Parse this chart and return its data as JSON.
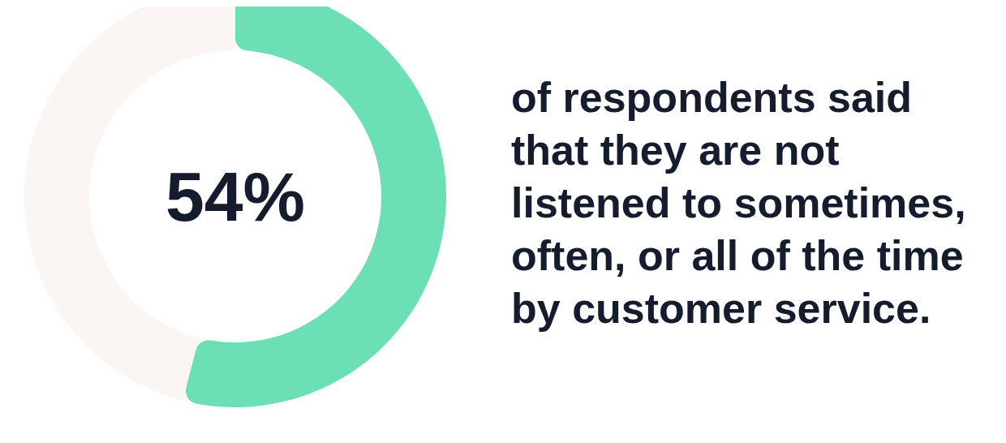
{
  "chart_data": {
    "type": "donut",
    "categories": [
      null,
      null
    ],
    "values": [
      54,
      46
    ],
    "colors": [
      "#6ddfb4",
      "#fbf6f3"
    ],
    "annotations": [
      "54%",
      "of respondents said that they are not listened to sometimes, often, or all of the time by customer service."
    ]
  }
}
